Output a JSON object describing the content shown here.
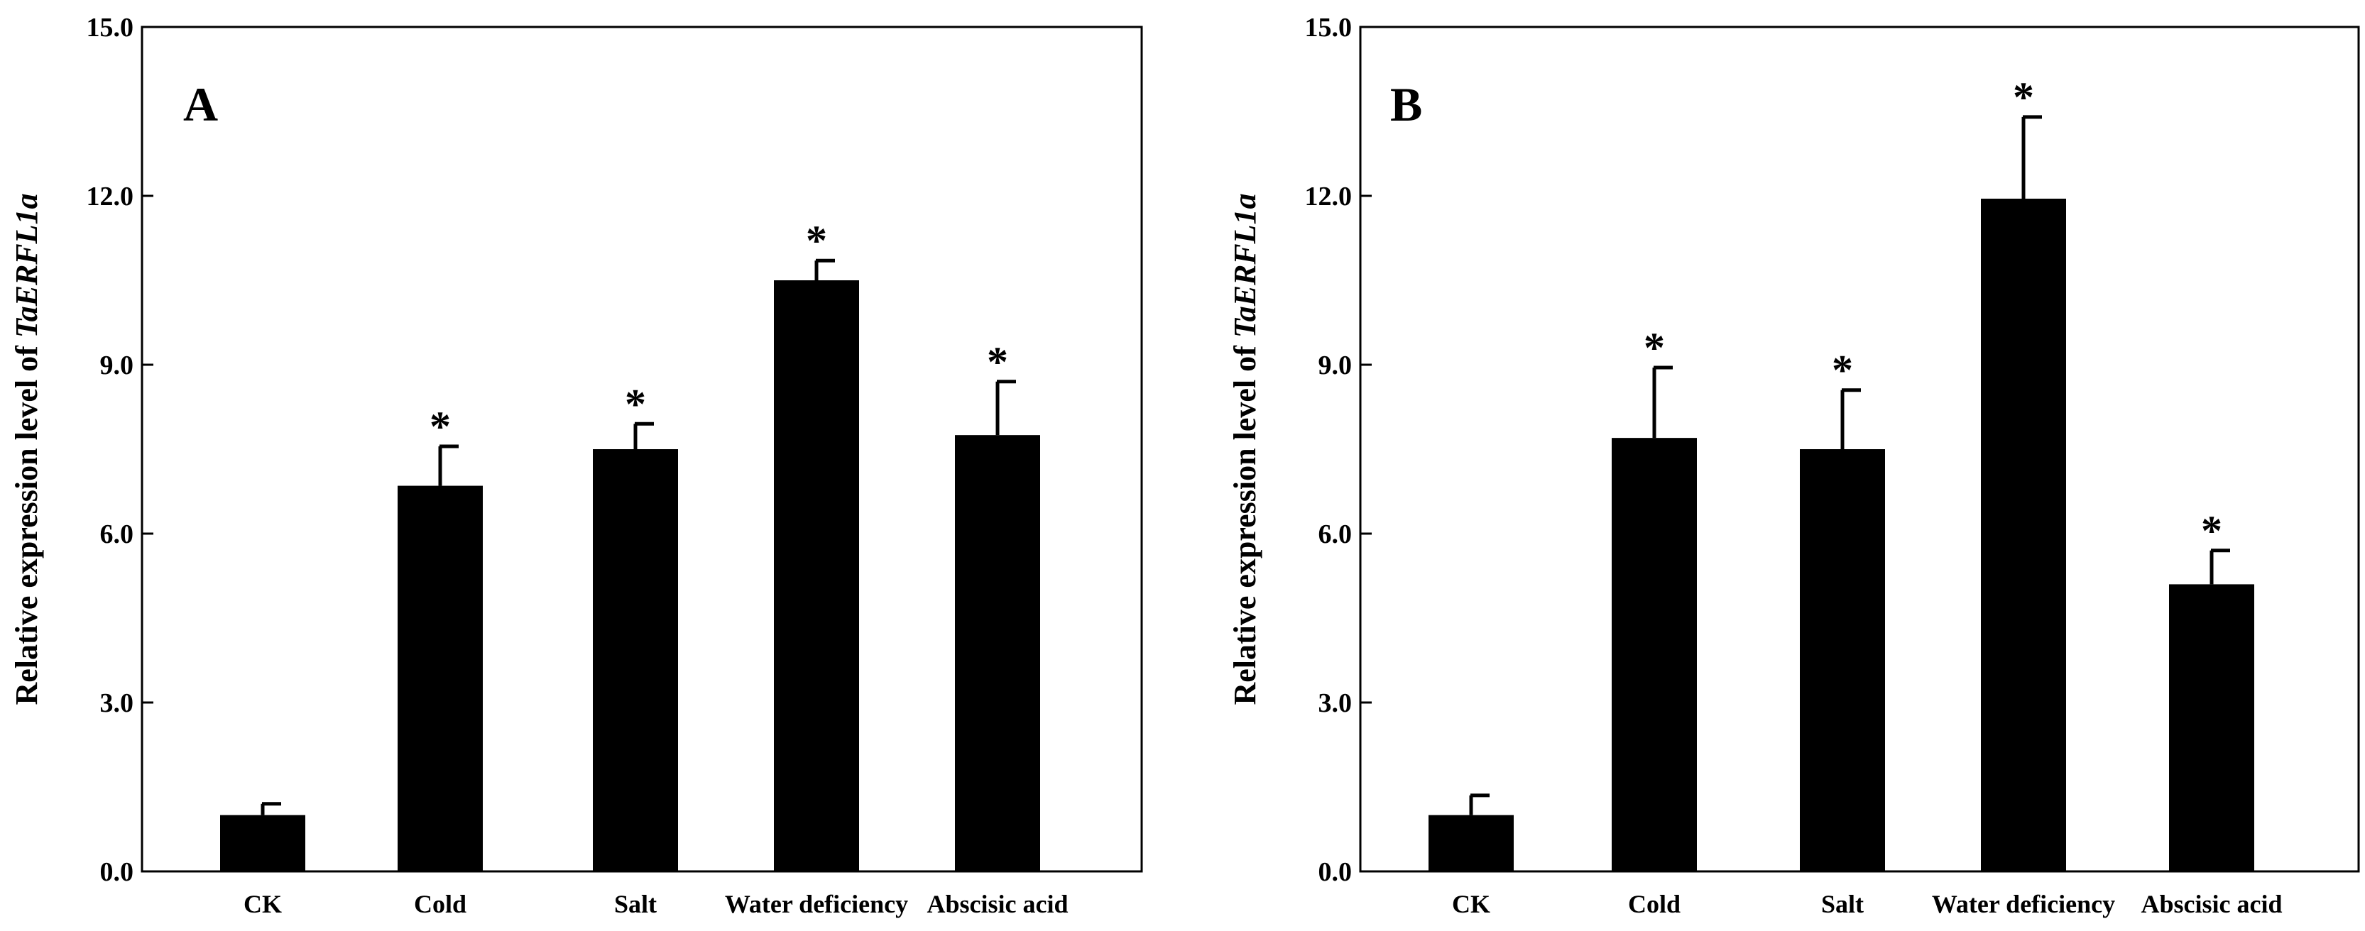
{
  "chart_data": [
    {
      "type": "bar",
      "panel_label": "A",
      "ylabel_prefix": "Relative expression level of ",
      "ylabel_gene": "TaERFL1a",
      "xlabel": "",
      "ylim": [
        0,
        15
      ],
      "yticks": [
        "0.0",
        "3.0",
        "6.0",
        "9.0",
        "12.0",
        "15.0"
      ],
      "categories": [
        "CK",
        "Cold",
        "Salt",
        "Water deficiency",
        "Abscisic acid"
      ],
      "values": [
        1.0,
        6.85,
        7.5,
        10.5,
        7.75
      ],
      "errors": [
        0.2,
        0.7,
        0.45,
        0.35,
        0.95
      ],
      "significance": [
        "",
        "*",
        "*",
        "*",
        "*"
      ],
      "bar_color": "#000000"
    },
    {
      "type": "bar",
      "panel_label": "B",
      "ylabel_prefix": "Relative expression level of ",
      "ylabel_gene": "TaERFL1a",
      "xlabel": "",
      "ylim": [
        0,
        15
      ],
      "yticks": [
        "0.0",
        "3.0",
        "6.0",
        "9.0",
        "12.0",
        "15.0"
      ],
      "categories": [
        "CK",
        "Cold",
        "Salt",
        "Water deficiency",
        "Abscisic acid"
      ],
      "values": [
        1.0,
        7.7,
        7.5,
        11.95,
        5.1
      ],
      "errors": [
        0.35,
        1.25,
        1.05,
        1.45,
        0.6
      ],
      "significance": [
        "",
        "*",
        "*",
        "*",
        "*"
      ],
      "bar_color": "#000000"
    }
  ]
}
